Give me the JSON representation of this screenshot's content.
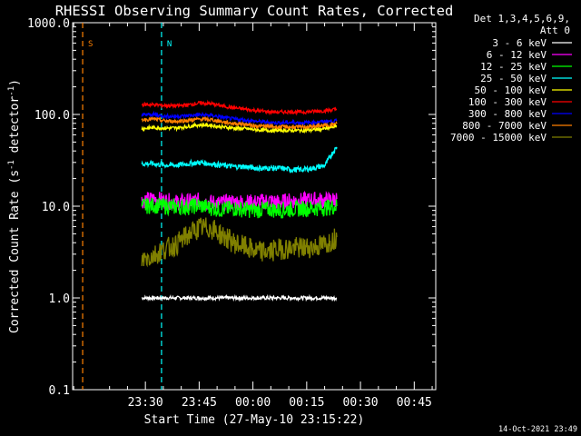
{
  "chart_data": {
    "type": "line",
    "title": "RHESSI Observing Summary Count Rates, Corrected",
    "ylabel_main": "Corrected Count Rate (s",
    "ylabel_exp1": "-1",
    "ylabel_mid": " detector",
    "ylabel_exp2": "-1",
    "ylabel_end": ")",
    "xlabel": "Start Time (27-May-10 23:15:22)",
    "y_scale": "log",
    "ylim": [
      0.1,
      1000.0
    ],
    "y_ticks": [
      {
        "value": 0.1,
        "label": "0.1"
      },
      {
        "value": 1.0,
        "label": "1.0"
      },
      {
        "value": 10.0,
        "label": "10.0"
      },
      {
        "value": 100.0,
        "label": "100.0"
      },
      {
        "value": 1000.0,
        "label": "1000.0"
      }
    ],
    "xlim_minutes": [
      -5.3,
      96
    ],
    "x_ticks": [
      {
        "minute": 15,
        "label": "23:30"
      },
      {
        "minute": 30,
        "label": "23:45"
      },
      {
        "minute": 45,
        "label": "00:00"
      },
      {
        "minute": 60,
        "label": "00:15"
      },
      {
        "minute": 75,
        "label": "00:30"
      },
      {
        "minute": 90,
        "label": "00:45"
      }
    ],
    "legend_header": [
      "Det 1,3,4,5,6,9,",
      "Att 0"
    ],
    "legend_position": "right",
    "series": [
      {
        "name": "3 - 6 keV",
        "color": "#ffffff",
        "values": [
          1.0,
          1.0,
          1.0,
          1.0,
          1.0,
          1.0,
          1.0,
          1.0,
          1.0,
          1.0,
          1.0,
          1.0,
          1.0,
          1.0,
          1.0,
          1.0,
          1.0,
          1.0
        ]
      },
      {
        "name": "6 - 12 keV",
        "color": "#ff00ff",
        "values": [
          11.5,
          12.0,
          11.5,
          11.0,
          11.2,
          11.5,
          11.0,
          10.8,
          11.2,
          11.0,
          11.0,
          11.5,
          11.0,
          11.5,
          11.5,
          11.8,
          11.5,
          12.0
        ]
      },
      {
        "name": "12 - 25 keV",
        "color": "#00ff00",
        "values": [
          10.0,
          10.2,
          10.0,
          9.8,
          9.8,
          10.2,
          9.6,
          9.2,
          9.5,
          9.2,
          9.0,
          9.3,
          9.0,
          9.3,
          9.4,
          9.5,
          9.6,
          10.0
        ]
      },
      {
        "name": "25 - 50 keV",
        "color": "#00ffff",
        "values": [
          29,
          29,
          28,
          28,
          29,
          30,
          29,
          28,
          27,
          27,
          26,
          26,
          26,
          25,
          25,
          26,
          28,
          44
        ]
      },
      {
        "name": "50 - 100 keV",
        "color": "#ffff00",
        "values": [
          70,
          72,
          71,
          71,
          74,
          77,
          76,
          73,
          71,
          70,
          68,
          67,
          67,
          67,
          67,
          68,
          70,
          75
        ]
      },
      {
        "name": "100 - 300 keV",
        "color": "#ff0000",
        "values": [
          128,
          128,
          125,
          124,
          127,
          133,
          131,
          124,
          118,
          114,
          110,
          107,
          106,
          107,
          106,
          108,
          110,
          114
        ]
      },
      {
        "name": "300 - 800 keV",
        "color": "#0000ff",
        "values": [
          99,
          100,
          96,
          95,
          97,
          99,
          98,
          93,
          89,
          87,
          84,
          82,
          81,
          82,
          81,
          82,
          84,
          85
        ]
      },
      {
        "name": "800 - 7000 keV",
        "color": "#ff8000",
        "values": [
          88,
          89,
          85,
          84,
          86,
          89,
          88,
          83,
          80,
          78,
          75,
          74,
          73,
          73,
          73,
          74,
          76,
          79
        ]
      },
      {
        "name": "7000 - 15000 keV",
        "color": "#808000",
        "values": [
          2.6,
          2.9,
          3.4,
          3.8,
          4.8,
          5.8,
          5.8,
          4.8,
          4.0,
          3.6,
          3.2,
          3.2,
          3.4,
          3.5,
          3.5,
          3.6,
          3.8,
          4.6
        ]
      }
    ],
    "series_x_minutes": [
      14.0,
      17.2,
      20.4,
      23.6,
      26.8,
      30.0,
      33.2,
      36.4,
      39.6,
      42.8,
      46.0,
      49.2,
      52.4,
      55.6,
      58.8,
      62.0,
      65.2,
      68.4
    ],
    "segment_markers": [
      {
        "label": "S",
        "label_color": "#ff8000",
        "minute": -2.5,
        "color": "#ff8000",
        "style": "dashed"
      },
      {
        "label": "N",
        "label_color": "#00ffff",
        "minute": 19.5,
        "color": "#00ffff",
        "style": "dashed"
      }
    ],
    "footer_date": "14-Oct-2021 23:49"
  }
}
